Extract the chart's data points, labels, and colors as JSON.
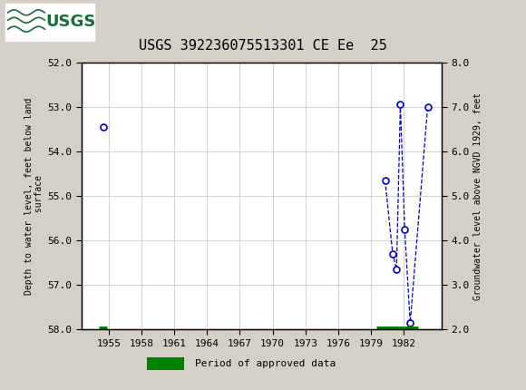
{
  "title": "USGS 392236075513301 CE Ee  25",
  "header_bg_color": "#1a6b3c",
  "plot_bg_color": "#ffffff",
  "fig_bg_color": "#d4d0c8",
  "left_ylabel": "Depth to water level, feet below land\n surface",
  "right_ylabel": "Groundwater level above NGVD 1929, feet",
  "xlim": [
    1952.5,
    1985.5
  ],
  "ylim_left": [
    52.0,
    58.0
  ],
  "ylim_right": [
    2.0,
    8.0
  ],
  "yticks_left": [
    52.0,
    53.0,
    54.0,
    55.0,
    56.0,
    57.0,
    58.0
  ],
  "yticks_right": [
    2.0,
    3.0,
    4.0,
    5.0,
    6.0,
    7.0,
    8.0
  ],
  "xticks": [
    1955,
    1958,
    1961,
    1964,
    1967,
    1970,
    1973,
    1976,
    1979,
    1982
  ],
  "cluster1_years": [
    1954.5
  ],
  "cluster1_depth": [
    53.45
  ],
  "cluster2_years": [
    1980.3,
    1981.0,
    1981.35,
    1981.7,
    1982.1,
    1982.6,
    1984.2
  ],
  "cluster2_depth": [
    54.65,
    56.3,
    56.65,
    52.95,
    55.75,
    57.85,
    53.0
  ],
  "approved_bars": [
    {
      "start": 1954.1,
      "end": 1954.8,
      "y": 58.0
    },
    {
      "start": 1979.5,
      "end": 1983.3,
      "y": 58.0
    }
  ],
  "point_color": "#0000cc",
  "line_color": "#0000cc",
  "approved_color": "#008000",
  "grid_color": "#c0c0c0",
  "font_family": "monospace"
}
